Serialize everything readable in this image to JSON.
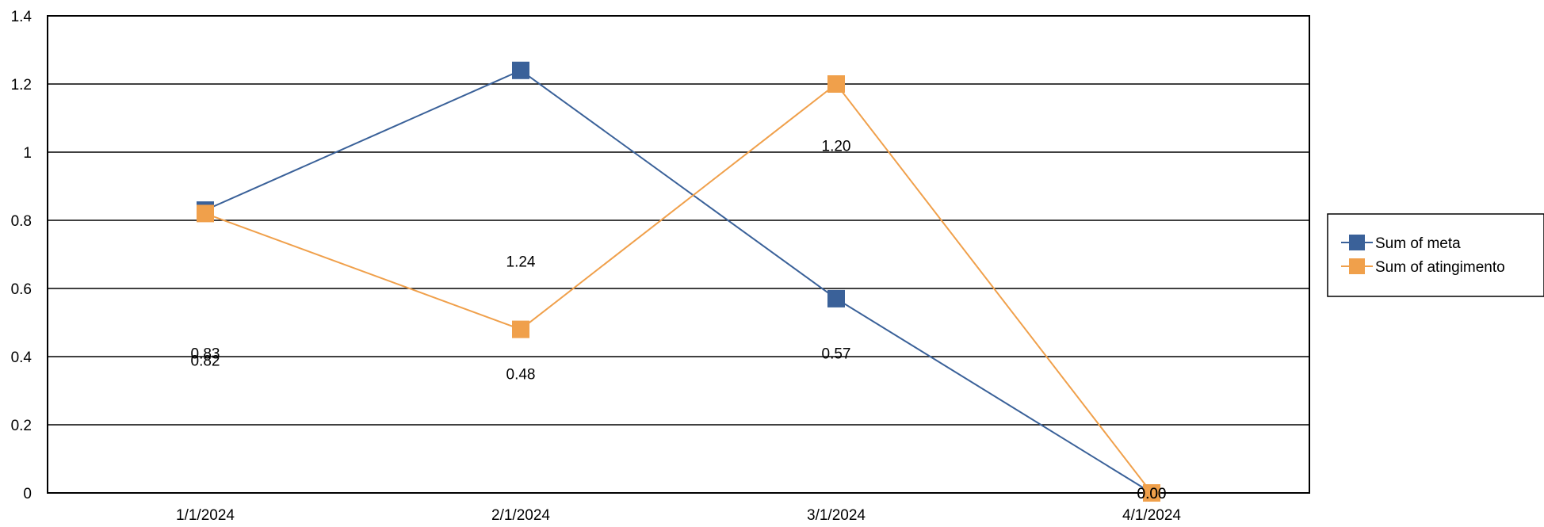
{
  "chart_data": {
    "type": "line",
    "categories": [
      "1/1/2024",
      "2/1/2024",
      "3/1/2024",
      "4/1/2024"
    ],
    "series": [
      {
        "name": "Sum of meta",
        "color": "#3a6199",
        "values": [
          0.83,
          1.24,
          0.57,
          0.0
        ],
        "labels": [
          "0.83",
          "1.24",
          "0.57",
          "0.00"
        ]
      },
      {
        "name": "Sum of atingimento",
        "color": "#f0a04b",
        "values": [
          0.82,
          0.48,
          1.2,
          0.0
        ],
        "labels": [
          "0.82",
          "0.48",
          "1.20",
          "0.00"
        ]
      }
    ],
    "ylim": [
      0,
      1.4
    ],
    "yticks": [
      "0",
      "0.2",
      "0.4",
      "0.6",
      "0.8",
      "1",
      "1.2",
      "1.4"
    ],
    "grid": true,
    "legend": "right"
  }
}
